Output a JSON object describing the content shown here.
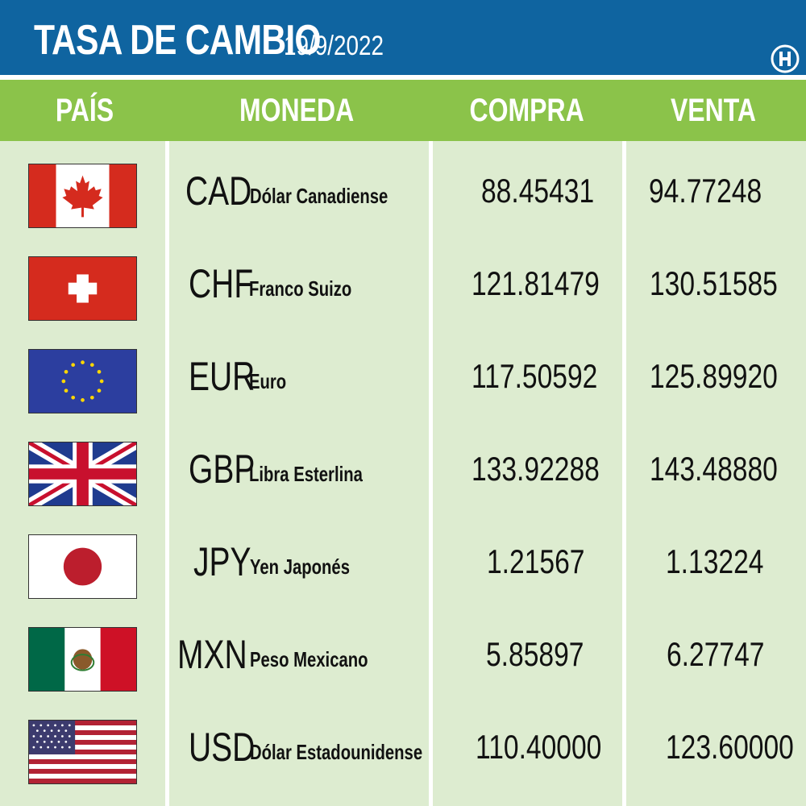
{
  "header": {
    "title": "TASA DE CAMBIO",
    "date": "19/9/2022",
    "bg_color": "#0f64a0"
  },
  "columns": {
    "pais": "PAÍS",
    "moneda": "MONEDA",
    "compra": "COMPRA",
    "venta": "VENTA",
    "bg_color": "#8bc34a"
  },
  "rows": [
    {
      "flag": "canada-flag-icon",
      "code": "CAD",
      "name": "Dólar Canadiense",
      "compra": "88.45431",
      "venta": "94.77248"
    },
    {
      "flag": "switzerland-flag-icon",
      "code": "CHF",
      "name": "Franco Suizo",
      "compra": "121.81479",
      "venta": "130.51585"
    },
    {
      "flag": "eu-flag-icon",
      "code": "EUR",
      "name": "Euro",
      "compra": "117.50592",
      "venta": "125.89920"
    },
    {
      "flag": "uk-flag-icon",
      "code": "GBP",
      "name": "Libra Esterlina",
      "compra": "133.92288",
      "venta": "143.48880"
    },
    {
      "flag": "japan-flag-icon",
      "code": "JPY",
      "name": "Yen Japonés",
      "compra": "1.21567",
      "venta": "1.13224"
    },
    {
      "flag": "mexico-flag-icon",
      "code": "MXN",
      "name": "Peso Mexicano",
      "compra": "5.85897",
      "venta": "6.27747"
    },
    {
      "flag": "usa-flag-icon",
      "code": "USD",
      "name": "Dólar Estadounidense",
      "compra": "110.40000",
      "venta": "123.60000"
    }
  ]
}
